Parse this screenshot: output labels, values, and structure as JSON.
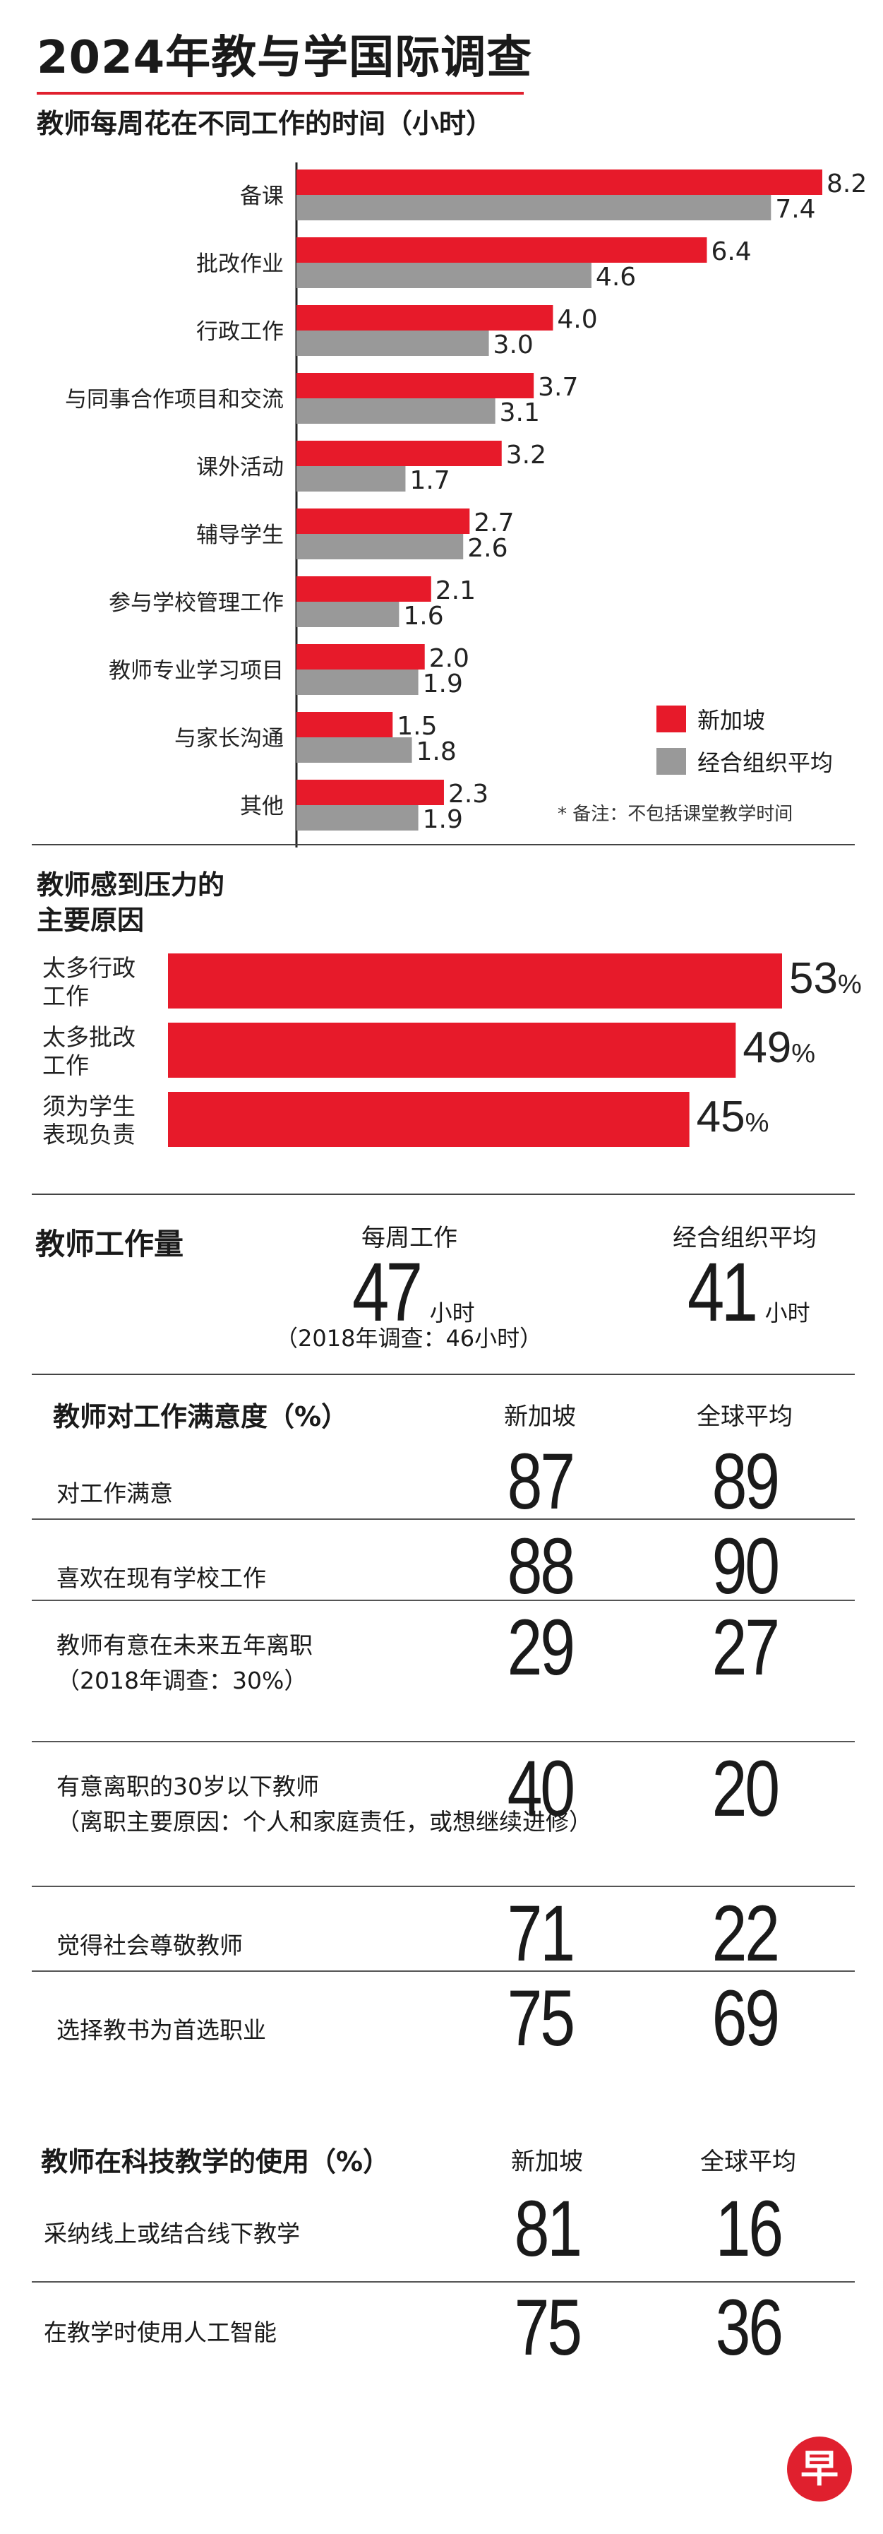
{
  "title": "2024年教与学国际调查",
  "hours": {
    "heading": "教师每周花在不同工作的时间（小时）",
    "legend": {
      "sg": "新加坡",
      "oecd": "经合组织平均"
    },
    "footnote": "* 备注：不包括课堂教学时间",
    "colors": {
      "sg": "#e71a2a",
      "oecd": "#999999"
    }
  },
  "stress": {
    "heading_line1": "教师感到压力的",
    "heading_line2": "主要原因"
  },
  "workload": {
    "heading": "教师工作量",
    "weekly_label": "每周工作",
    "weekly_value": "47",
    "weekly_unit": "小时",
    "note": "（2018年调查：46小时）",
    "oecd_label": "经合组织平均",
    "oecd_value": "41",
    "oecd_unit": "小时"
  },
  "satisfaction": {
    "heading": "教师对工作满意度（%）",
    "col_sg": "新加坡",
    "col_global": "全球平均",
    "rows": [
      {
        "label": "对工作满意",
        "sub": "",
        "sg": "87",
        "global": "89"
      },
      {
        "label": "喜欢在现有学校工作",
        "sub": "",
        "sg": "88",
        "global": "90"
      },
      {
        "label": "教师有意在未来五年离职",
        "sub": "（2018年调查：30%）",
        "sg": "29",
        "global": "27"
      },
      {
        "label": "有意离职的30岁以下教师",
        "sub": "（离职主要原因：个人和家庭责任，或想继续进修）",
        "sg": "40",
        "global": "20"
      },
      {
        "label": "觉得社会尊敬教师",
        "sub": "",
        "sg": "71",
        "global": "22"
      },
      {
        "label": "选择教书为首选职业",
        "sub": "",
        "sg": "75",
        "global": "69"
      }
    ]
  },
  "technology": {
    "heading": "教师在科技教学的使用（%）",
    "col_sg": "新加坡",
    "col_global": "全球平均",
    "rows": [
      {
        "label": "采纳线上或结合线下教学",
        "sg": "81",
        "global": "16"
      },
      {
        "label": "在教学时使用人工智能",
        "sg": "75",
        "global": "36"
      }
    ]
  },
  "logo_text": "早",
  "chart_data": [
    {
      "type": "bar",
      "orientation": "horizontal",
      "title": "教师每周花在不同工作的时间（小时）",
      "categories": [
        "备课",
        "批改作业",
        "行政工作",
        "与同事合作项目和交流",
        "课外活动",
        "辅导学生",
        "参与学校管理工作",
        "教师专业学习项目",
        "与家长沟通",
        "其他"
      ],
      "series": [
        {
          "name": "新加坡",
          "values": [
            8.2,
            6.4,
            4.0,
            3.7,
            3.2,
            2.7,
            2.1,
            2.0,
            1.5,
            2.3
          ],
          "labels": [
            "8.2",
            "6.4",
            "4.0",
            "3.7",
            "3.2",
            "2.7",
            "2.1",
            "2.0",
            "1.5",
            "2.3"
          ]
        },
        {
          "name": "经合组织平均",
          "values": [
            7.4,
            4.6,
            3.0,
            3.1,
            1.7,
            2.6,
            1.6,
            1.9,
            1.8,
            1.9
          ],
          "labels": [
            "7.4",
            "4.6",
            "3.0",
            "3.1",
            "1.7",
            "2.6",
            "1.6",
            "1.9",
            "1.8",
            "1.9"
          ]
        }
      ],
      "xlim": [
        0,
        8.2
      ],
      "legend": "bottom-right",
      "grid": false
    },
    {
      "type": "bar",
      "orientation": "horizontal",
      "title": "教师感到压力的主要原因",
      "categories": [
        [
          "太多行政",
          "工作"
        ],
        [
          "太多批改",
          "工作"
        ],
        [
          "须为学生",
          "表现负责"
        ]
      ],
      "series": [
        {
          "values": [
            53,
            49,
            45
          ],
          "labels": [
            "53",
            "49",
            "45"
          ],
          "unit": "%"
        }
      ],
      "xlim": [
        0,
        53
      ],
      "grid": false
    }
  ]
}
